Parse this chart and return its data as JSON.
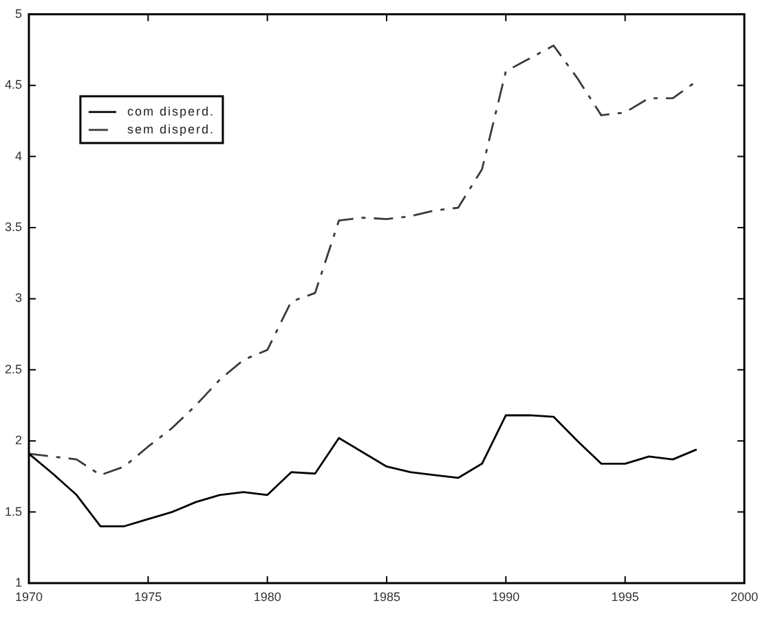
{
  "chart_data": {
    "type": "line",
    "x": [
      1970,
      1971,
      1972,
      1973,
      1974,
      1975,
      1976,
      1977,
      1978,
      1979,
      1980,
      1981,
      1982,
      1983,
      1984,
      1985,
      1986,
      1987,
      1988,
      1989,
      1990,
      1991,
      1992,
      1993,
      1994,
      1995,
      1996,
      1997,
      1998
    ],
    "xlim": [
      1970,
      2000
    ],
    "xticks": [
      1970,
      1975,
      1980,
      1985,
      1990,
      1995,
      2000
    ],
    "ylim": [
      1,
      5
    ],
    "yticks": [
      1,
      1.5,
      2,
      2.5,
      3,
      3.5,
      4,
      4.5,
      5
    ],
    "grid": false,
    "legend": "top left",
    "series": [
      {
        "name": "com disperd.",
        "color": "#000000",
        "line_style": "solid",
        "values": [
          1.91,
          1.77,
          1.62,
          1.4,
          1.4,
          1.45,
          1.5,
          1.57,
          1.62,
          1.64,
          1.62,
          1.78,
          1.77,
          2.02,
          1.92,
          1.82,
          1.78,
          1.76,
          1.74,
          1.84,
          2.18,
          2.18,
          2.17,
          2.0,
          1.84,
          1.84,
          1.89,
          1.87,
          1.94
        ]
      },
      {
        "name": "sem disperd.",
        "color": "#3a3a3a",
        "line_style": "dashed",
        "values": [
          1.91,
          1.89,
          1.87,
          1.76,
          1.82,
          1.96,
          2.09,
          2.25,
          2.43,
          2.57,
          2.64,
          2.98,
          3.04,
          3.55,
          3.57,
          3.56,
          3.58,
          3.62,
          3.64,
          3.91,
          4.6,
          4.69,
          4.78,
          4.55,
          4.29,
          4.31,
          4.41,
          4.41,
          4.53
        ]
      }
    ]
  }
}
